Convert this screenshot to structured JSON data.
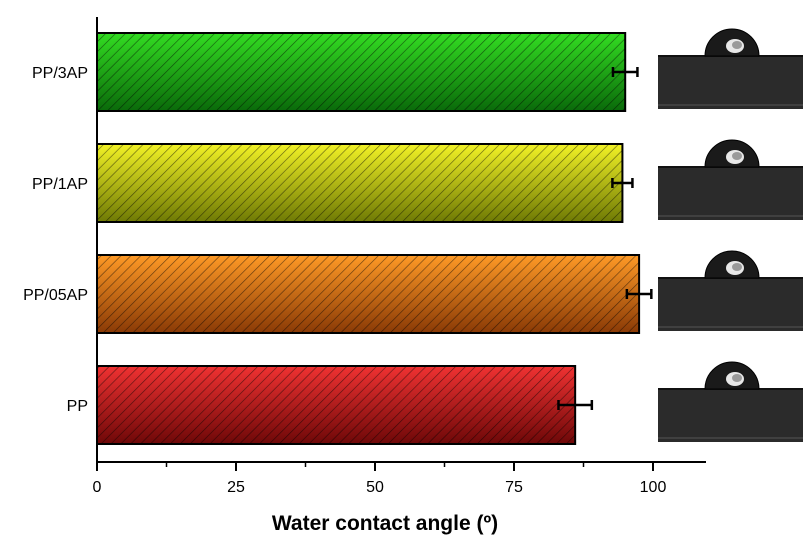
{
  "chart_data": {
    "type": "bar",
    "orientation": "horizontal",
    "categories": [
      "PP/3AP",
      "PP/1AP",
      "PP/05AP",
      "PP"
    ],
    "values": [
      95,
      94.5,
      97.5,
      86
    ],
    "errors": [
      2.2,
      1.8,
      2.2,
      3
    ],
    "colors": [
      {
        "light": "#33dd22",
        "dark": "#0a6a0a"
      },
      {
        "light": "#f2f226",
        "dark": "#6f7a05"
      },
      {
        "light": "#ff9a26",
        "dark": "#8a3a06"
      },
      {
        "light": "#f03232",
        "dark": "#6e0808"
      }
    ],
    "xlabel": "Water contact angle (º)",
    "xlim": [
      0,
      110
    ],
    "xticks": [
      "0",
      "25",
      "50",
      "75",
      "100"
    ],
    "xtick_values": [
      0,
      25,
      50,
      75,
      100
    ],
    "minor_ticks": [
      12.5,
      37.5,
      62.5,
      87.5
    ],
    "grid": false,
    "pattern": "diagonal-hatch",
    "insets": "water-droplet-photo"
  }
}
